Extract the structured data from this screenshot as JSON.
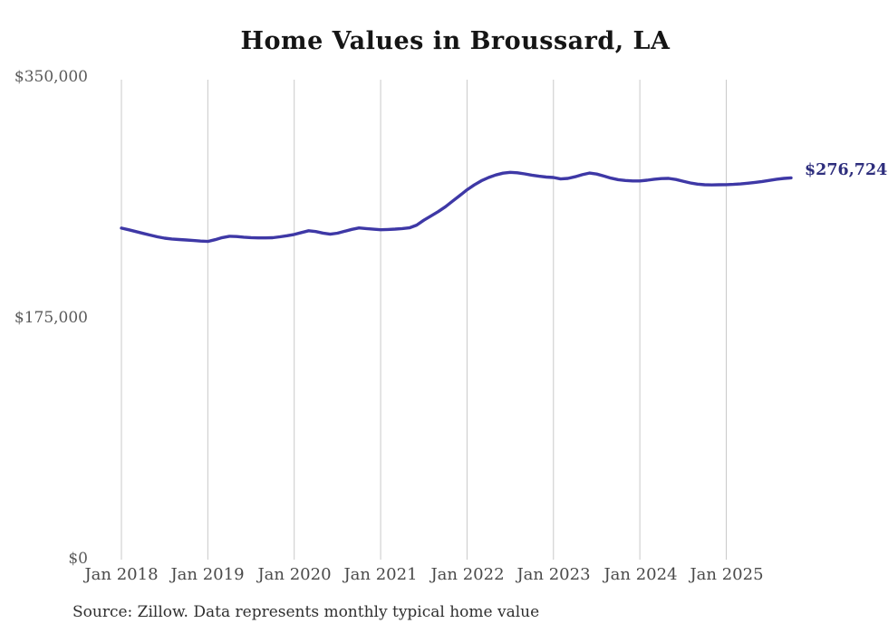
{
  "chart_data": {
    "type": "line",
    "title": "Home Values in Broussard, LA",
    "series_name": "Monthly typical home value",
    "unit": "USD",
    "start_month": "2018-01",
    "end_month": "2025-10",
    "x_tick_labels": [
      "Jan 2018",
      "Jan 2019",
      "Jan 2020",
      "Jan 2021",
      "Jan 2022",
      "Jan 2023",
      "Jan 2024",
      "Jan 2025"
    ],
    "y_tick_labels": [
      "$350,000",
      "$175,000",
      "$0"
    ],
    "ylim": [
      0,
      350000
    ],
    "grid": "vertical-only",
    "legend": "none",
    "end_label": "$276,724",
    "final_value": 276724,
    "values": [
      240200,
      239000,
      237700,
      236400,
      235100,
      233900,
      232900,
      232300,
      231900,
      231600,
      231200,
      230800,
      230500,
      231800,
      233300,
      234300,
      234100,
      233600,
      233300,
      233100,
      233100,
      233200,
      233900,
      234700,
      235600,
      237000,
      238300,
      237700,
      236600,
      235800,
      236500,
      237900,
      239300,
      240300,
      239900,
      239400,
      239000,
      239200,
      239500,
      239900,
      240400,
      242400,
      245900,
      249100,
      252200,
      255700,
      259800,
      263900,
      268000,
      271600,
      274600,
      277000,
      278800,
      280100,
      280700,
      280400,
      279600,
      278700,
      277900,
      277300,
      277000,
      275900,
      276300,
      277500,
      279000,
      280200,
      279500,
      278000,
      276500,
      275400,
      274800,
      274500,
      274500,
      275000,
      275700,
      276200,
      276300,
      275500,
      274300,
      273000,
      272200,
      271700,
      271600,
      271700,
      271800,
      272000,
      272300,
      272800,
      273400,
      274100,
      274900,
      275700,
      276300,
      276724
    ],
    "line_color": "#3e38a6",
    "end_label_color": "#2e2e7d",
    "gridline_color": "#c9c9c9",
    "title_color": "#151515",
    "source_note": "Source: Zillow. Data represents monthly typical home value"
  }
}
